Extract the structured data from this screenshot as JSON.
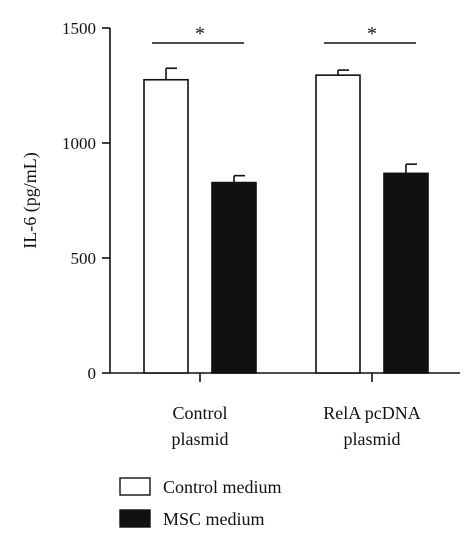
{
  "chart_data": {
    "type": "bar",
    "categories": [
      [
        "Control",
        "plasmid"
      ],
      [
        "RelA pcDNA",
        "plasmid"
      ]
    ],
    "series": [
      {
        "name": "Control medium",
        "values": [
          1275,
          1295
        ],
        "errors": [
          50,
          22
        ],
        "color": "#ffffff"
      },
      {
        "name": "MSC medium",
        "values": [
          828,
          868
        ],
        "errors": [
          30,
          40
        ],
        "color": "#111111"
      }
    ],
    "ylabel": "IL-6 (pg/mL)",
    "ylim": [
      0,
      1500
    ],
    "yticks": [
      0,
      500,
      1000,
      1500
    ],
    "significance": [
      {
        "category": 0,
        "label": "*"
      },
      {
        "category": 1,
        "label": "*"
      }
    ],
    "legend_position": "bottom-left",
    "grid": false
  }
}
